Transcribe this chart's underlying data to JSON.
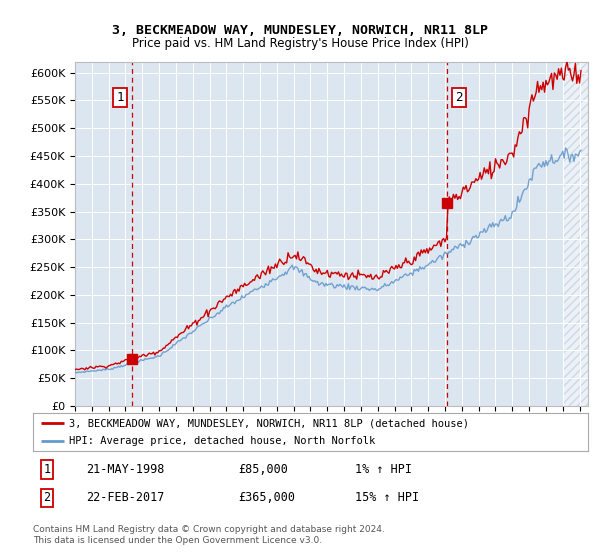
{
  "title": "3, BECKMEADOW WAY, MUNDESLEY, NORWICH, NR11 8LP",
  "subtitle": "Price paid vs. HM Land Registry's House Price Index (HPI)",
  "sale1_label": "21-MAY-1998",
  "sale1_price": 85000,
  "sale1_hpi_pct": "1%",
  "sale2_label": "22-FEB-2017",
  "sale2_price": 365000,
  "sale2_hpi_pct": "15%",
  "sale1_marker_x": 1998.38,
  "sale2_marker_x": 2017.14,
  "legend_line1": "3, BECKMEADOW WAY, MUNDESLEY, NORWICH, NR11 8LP (detached house)",
  "legend_line2": "HPI: Average price, detached house, North Norfolk",
  "footer": "Contains HM Land Registry data © Crown copyright and database right 2024.\nThis data is licensed under the Open Government Licence v3.0.",
  "bg_color": "#dce6f1",
  "red_line_color": "#cc0000",
  "blue_line_color": "#6699cc",
  "dashed_line_color": "#cc0000",
  "ylim": [
    0,
    620000
  ],
  "xlim_start": 1995.0,
  "xlim_end": 2025.5,
  "yticks": [
    0,
    50000,
    100000,
    150000,
    200000,
    250000,
    300000,
    350000,
    400000,
    450000,
    500000,
    550000,
    600000
  ],
  "ytick_labels": [
    "£0",
    "£50K",
    "£100K",
    "£150K",
    "£200K",
    "£250K",
    "£300K",
    "£350K",
    "£400K",
    "£450K",
    "£500K",
    "£550K",
    "£600K"
  ],
  "xticks": [
    1995,
    1996,
    1997,
    1998,
    1999,
    2000,
    2001,
    2002,
    2003,
    2004,
    2005,
    2006,
    2007,
    2008,
    2009,
    2010,
    2011,
    2012,
    2013,
    2014,
    2015,
    2016,
    2017,
    2018,
    2019,
    2020,
    2021,
    2022,
    2023,
    2024,
    2025
  ]
}
